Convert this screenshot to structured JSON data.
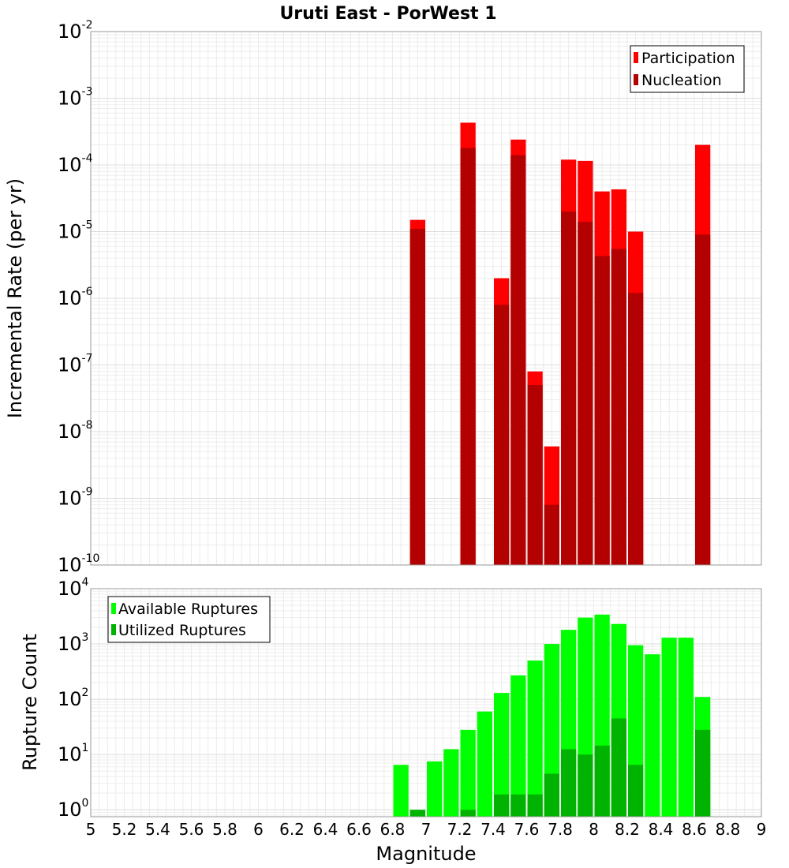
{
  "chart_data": [
    {
      "id": "rate",
      "type": "bar",
      "title": "Uruti East - PorWest 1",
      "ylabel": "Incremental Rate (per yr)",
      "xlabel": "",
      "yscale": "log",
      "ylim": [
        1e-10,
        0.01
      ],
      "xlim": [
        5,
        9
      ],
      "grid": true,
      "legend_position": "top-right",
      "series": [
        {
          "name": "Participation",
          "color": "#ff0000",
          "x": [
            6.95,
            7.25,
            7.45,
            7.55,
            7.65,
            7.75,
            7.85,
            7.95,
            8.05,
            8.15,
            8.25,
            8.65
          ],
          "values": [
            1.5e-05,
            0.00043,
            2e-06,
            0.00024,
            8e-08,
            6e-09,
            0.00012,
            0.000115,
            4e-05,
            4.3e-05,
            1e-05,
            0.0002
          ]
        },
        {
          "name": "Nucleation",
          "color": "#b30000",
          "x": [
            6.95,
            7.25,
            7.45,
            7.55,
            7.65,
            7.75,
            7.85,
            7.95,
            8.05,
            8.15,
            8.25,
            8.65
          ],
          "values": [
            1.1e-05,
            0.00018,
            8e-07,
            0.00014,
            5e-08,
            8e-10,
            2e-05,
            1.4e-05,
            4.3e-06,
            5.5e-06,
            1.2e-06,
            9e-06
          ]
        }
      ],
      "yticks": [
        {
          "base": "10",
          "exp": "-10"
        },
        {
          "base": "10",
          "exp": "-9"
        },
        {
          "base": "10",
          "exp": "-8"
        },
        {
          "base": "10",
          "exp": "-7"
        },
        {
          "base": "10",
          "exp": "-6"
        },
        {
          "base": "10",
          "exp": "-5"
        },
        {
          "base": "10",
          "exp": "-4"
        },
        {
          "base": "10",
          "exp": "-3"
        },
        {
          "base": "10",
          "exp": "-2"
        }
      ]
    },
    {
      "id": "count",
      "type": "bar",
      "title": "",
      "ylabel": "Rupture Count",
      "xlabel": "Magnitude",
      "yscale": "log",
      "ylim": [
        0.75,
        10000
      ],
      "xlim": [
        5,
        9
      ],
      "grid": true,
      "legend_position": "top-left",
      "series": [
        {
          "name": "Available Ruptures",
          "color": "#00ff00",
          "x": [
            6.85,
            6.95,
            7.05,
            7.15,
            7.25,
            7.35,
            7.45,
            7.55,
            7.65,
            7.75,
            7.85,
            7.95,
            8.05,
            8.15,
            8.25,
            8.35,
            8.45,
            8.55,
            8.65
          ],
          "values": [
            6.5,
            1,
            7.5,
            12.5,
            28,
            60,
            130,
            270,
            500,
            1000,
            1800,
            3000,
            3400,
            2300,
            950,
            650,
            1300,
            1300,
            110
          ]
        },
        {
          "name": "Utilized Ruptures",
          "color": "#00b300",
          "x": [
            6.95,
            7.25,
            7.45,
            7.55,
            7.65,
            7.75,
            7.85,
            7.95,
            8.05,
            8.15,
            8.25,
            8.65
          ],
          "values": [
            1,
            1,
            1.9,
            1.9,
            1.9,
            4.5,
            12.5,
            10,
            14.5,
            45,
            6.5,
            28
          ]
        }
      ],
      "yticks": [
        {
          "base": "10",
          "exp": "0"
        },
        {
          "base": "10",
          "exp": "1"
        },
        {
          "base": "10",
          "exp": "2"
        },
        {
          "base": "10",
          "exp": "3"
        },
        {
          "base": "10",
          "exp": "4"
        }
      ],
      "xticks": [
        "5",
        "5.2",
        "5.4",
        "5.6",
        "5.8",
        "6",
        "6.2",
        "6.4",
        "6.6",
        "6.8",
        "7",
        "7.2",
        "7.4",
        "7.6",
        "7.8",
        "8",
        "8.2",
        "8.4",
        "8.6",
        "8.8",
        "9"
      ]
    }
  ]
}
